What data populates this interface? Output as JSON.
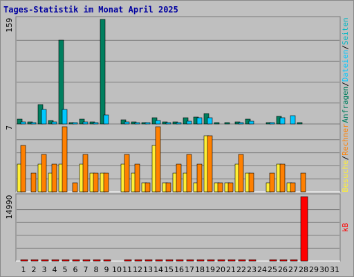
{
  "title": "Tages-Statistik im Monat April 2025",
  "colors": {
    "background": "#c0c0c0",
    "title": "#0000a0",
    "anfragen": "#007f5f",
    "dateien": "#00c8ff",
    "seiten": "#00b7c4",
    "besuche": "#ffef36",
    "rechner": "#ff8000",
    "kb": "#ff0000",
    "weekend": "#008040",
    "weekday": "#000000"
  },
  "chart_data": [
    {
      "type": "bar",
      "panel": "top",
      "y_max_label": "159",
      "ylim": [
        0,
        159
      ],
      "x": [
        1,
        2,
        3,
        4,
        5,
        6,
        7,
        8,
        9,
        10,
        11,
        12,
        13,
        14,
        15,
        16,
        17,
        18,
        19,
        20,
        21,
        22,
        23,
        24,
        25,
        26,
        27,
        28,
        29,
        30,
        31
      ],
      "series": [
        {
          "name": "Anfragen",
          "values": [
            7,
            3,
            30,
            5,
            127,
            2,
            7,
            3,
            159,
            0,
            6,
            3,
            2,
            9,
            3,
            3,
            10,
            11,
            16,
            1,
            1,
            3,
            7,
            0,
            2,
            12,
            0,
            2,
            0,
            0,
            0
          ]
        },
        {
          "name": "Dateien",
          "values": [
            3,
            1,
            22,
            3,
            22,
            1,
            3,
            2,
            14,
            0,
            3,
            2,
            1,
            5,
            1,
            2,
            4,
            9,
            10,
            0,
            0,
            2,
            4,
            0,
            1,
            10,
            13,
            0,
            0,
            0,
            0
          ]
        },
        {
          "name": "Seiten",
          "values": [
            0,
            0,
            0,
            0,
            0,
            0,
            0,
            0,
            0,
            0,
            0,
            0,
            0,
            0,
            0,
            0,
            0,
            0,
            0,
            0,
            0,
            0,
            0,
            0,
            0,
            0,
            0,
            0,
            0,
            0,
            0
          ]
        }
      ]
    },
    {
      "type": "bar",
      "panel": "middle",
      "y_max_label": "7",
      "ylim": [
        0,
        7
      ],
      "x": [
        1,
        2,
        3,
        4,
        5,
        6,
        7,
        8,
        9,
        10,
        11,
        12,
        13,
        14,
        15,
        16,
        17,
        18,
        19,
        20,
        21,
        22,
        23,
        24,
        25,
        26,
        27,
        28,
        29,
        30,
        31
      ],
      "series": [
        {
          "name": "Besuche",
          "values": [
            3,
            0,
            3,
            2,
            3,
            0,
            3,
            2,
            2,
            0,
            3,
            2,
            1,
            5,
            1,
            2,
            2,
            1,
            6,
            1,
            1,
            3,
            2,
            0,
            1,
            3,
            1,
            0,
            0,
            0,
            0
          ]
        },
        {
          "name": "Rechner",
          "values": [
            5,
            2,
            4,
            3,
            7,
            1,
            4,
            2,
            2,
            0,
            4,
            3,
            1,
            7,
            1,
            3,
            4,
            3,
            6,
            1,
            1,
            4,
            2,
            0,
            2,
            3,
            1,
            2,
            0,
            0,
            0
          ]
        }
      ]
    },
    {
      "type": "bar",
      "panel": "bottom",
      "y_max_label": "14990",
      "ylim": [
        0,
        14990
      ],
      "x": [
        1,
        2,
        3,
        4,
        5,
        6,
        7,
        8,
        9,
        10,
        11,
        12,
        13,
        14,
        15,
        16,
        17,
        18,
        19,
        20,
        21,
        22,
        23,
        24,
        25,
        26,
        27,
        28,
        29,
        30,
        31
      ],
      "series": [
        {
          "name": "kB",
          "values": [
            50,
            50,
            50,
            50,
            50,
            50,
            50,
            50,
            50,
            0,
            50,
            50,
            50,
            50,
            50,
            50,
            50,
            50,
            50,
            50,
            50,
            50,
            50,
            0,
            50,
            50,
            50,
            14990,
            0,
            0,
            0
          ]
        }
      ]
    }
  ],
  "side_labels": {
    "top": [
      {
        "text": "Anfragen",
        "color_key": "anfragen"
      },
      {
        "text": "/",
        "color_key": "weekday"
      },
      {
        "text": "Dateien",
        "color_key": "dateien"
      },
      {
        "text": "/",
        "color_key": "weekday"
      },
      {
        "text": "Seiten",
        "color_key": "seiten"
      }
    ],
    "middle": [
      {
        "text": "Besuche",
        "color_key": "besuche"
      },
      {
        "text": "/",
        "color_key": "weekday"
      },
      {
        "text": "Rechner",
        "color_key": "rechner"
      }
    ],
    "bottom": [
      {
        "text": "kB",
        "color_key": "kb"
      }
    ]
  },
  "weekend_days": [
    5,
    6,
    12,
    13,
    19,
    20,
    26,
    27
  ]
}
